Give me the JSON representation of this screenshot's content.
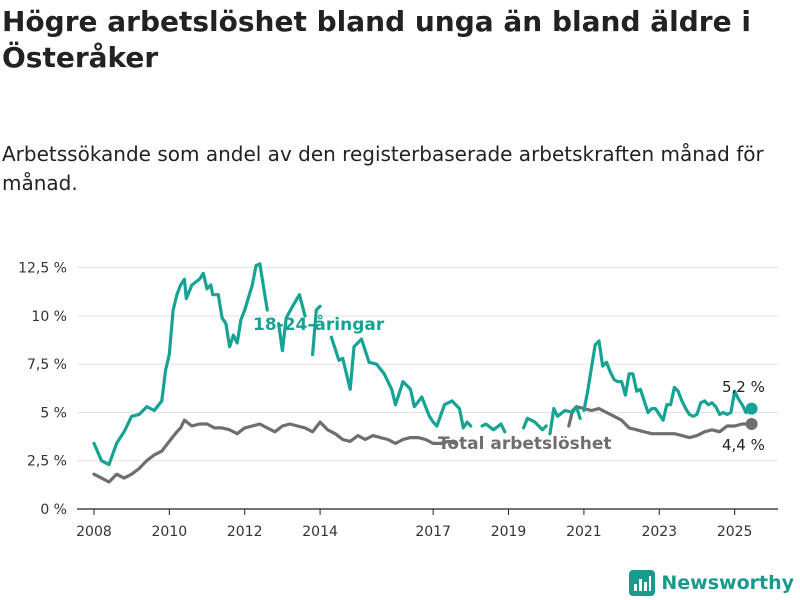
{
  "title": "Högre arbetslöshet bland unga än bland äldre i Österåker",
  "subtitle": "Arbetssökande som andel av den registerbaserade arbetskraften månad för månad.",
  "brand": "Newsworthy",
  "colors": {
    "youth": "#16a394",
    "total": "#6e6e6e",
    "grid": "#e2e2e2"
  },
  "chart_data": {
    "type": "line",
    "title": "Högre arbetslöshet bland unga än bland äldre i Österåker",
    "subtitle": "Arbetssökande som andel av den registerbaserade arbetskraften månad för månad.",
    "xlabel": "",
    "ylabel": "",
    "x_ticks": [
      "2008",
      "2010",
      "2012",
      "2014",
      "2017",
      "2019",
      "2021",
      "2023",
      "2025"
    ],
    "y_ticks": [
      "0 %",
      "2,5 %",
      "5 %",
      "7,5 %",
      "10 %",
      "12,5 %"
    ],
    "ylim": [
      0,
      13
    ],
    "grid": true,
    "x_unit": "year",
    "series": [
      {
        "name": "18-24-åringar",
        "color": "#16a394",
        "end_label": "5,2 %",
        "segments": [
          [
            [
              2008.0,
              3.4
            ],
            [
              2008.2,
              2.5
            ],
            [
              2008.4,
              2.3
            ],
            [
              2008.6,
              3.4
            ],
            [
              2008.8,
              4.0
            ],
            [
              2009.0,
              4.8
            ],
            [
              2009.2,
              4.9
            ],
            [
              2009.4,
              5.3
            ],
            [
              2009.6,
              5.1
            ],
            [
              2009.8,
              5.6
            ],
            [
              2009.9,
              7.2
            ],
            [
              2010.0,
              8.0
            ],
            [
              2010.1,
              10.3
            ],
            [
              2010.2,
              11.1
            ],
            [
              2010.3,
              11.6
            ],
            [
              2010.4,
              11.9
            ],
            [
              2010.45,
              10.9
            ],
            [
              2010.6,
              11.6
            ],
            [
              2010.8,
              11.9
            ],
            [
              2010.9,
              12.2
            ],
            [
              2011.0,
              11.4
            ],
            [
              2011.1,
              11.6
            ],
            [
              2011.15,
              11.1
            ],
            [
              2011.3,
              11.1
            ],
            [
              2011.4,
              9.9
            ],
            [
              2011.5,
              9.6
            ],
            [
              2011.6,
              8.4
            ],
            [
              2011.7,
              9.0
            ],
            [
              2011.8,
              8.6
            ],
            [
              2011.9,
              9.8
            ],
            [
              2012.0,
              10.3
            ],
            [
              2012.2,
              11.6
            ],
            [
              2012.3,
              12.6
            ],
            [
              2012.4,
              12.7
            ],
            [
              2012.6,
              10.3
            ]
          ],
          [
            [
              2012.9,
              9.6
            ],
            [
              2013.0,
              8.2
            ],
            [
              2013.1,
              9.9
            ],
            [
              2013.3,
              10.6
            ],
            [
              2013.45,
              11.1
            ],
            [
              2013.6,
              10.0
            ]
          ],
          [
            [
              2013.8,
              8.0
            ],
            [
              2013.9,
              10.3
            ],
            [
              2014.0,
              10.5
            ]
          ],
          [
            [
              2014.3,
              8.9
            ],
            [
              2014.5,
              7.7
            ],
            [
              2014.6,
              7.8
            ],
            [
              2014.8,
              6.2
            ],
            [
              2014.9,
              8.4
            ],
            [
              2015.1,
              8.8
            ],
            [
              2015.3,
              7.6
            ],
            [
              2015.5,
              7.5
            ],
            [
              2015.7,
              7.0
            ],
            [
              2015.9,
              6.2
            ],
            [
              2016.0,
              5.4
            ],
            [
              2016.2,
              6.6
            ],
            [
              2016.4,
              6.2
            ],
            [
              2016.5,
              5.3
            ],
            [
              2016.7,
              5.8
            ],
            [
              2016.9,
              4.8
            ],
            [
              2017.0,
              4.5
            ],
            [
              2017.1,
              4.3
            ],
            [
              2017.3,
              5.4
            ],
            [
              2017.5,
              5.6
            ],
            [
              2017.7,
              5.2
            ],
            [
              2017.8,
              4.2
            ],
            [
              2017.9,
              4.5
            ],
            [
              2018.0,
              4.3
            ]
          ],
          [
            [
              2018.3,
              4.3
            ],
            [
              2018.4,
              4.4
            ],
            [
              2018.6,
              4.1
            ],
            [
              2018.8,
              4.4
            ],
            [
              2018.9,
              4.0
            ]
          ],
          [
            [
              2019.4,
              4.2
            ],
            [
              2019.5,
              4.7
            ],
            [
              2019.7,
              4.5
            ],
            [
              2019.9,
              4.1
            ],
            [
              2020.0,
              4.3
            ]
          ],
          [
            [
              2020.1,
              3.9
            ],
            [
              2020.2,
              5.2
            ],
            [
              2020.3,
              4.8
            ],
            [
              2020.5,
              5.1
            ],
            [
              2020.7,
              5.0
            ],
            [
              2020.8,
              5.3
            ],
            [
              2020.9,
              4.7
            ]
          ],
          [
            [
              2021.0,
              5.1
            ],
            [
              2021.1,
              6.1
            ],
            [
              2021.2,
              7.3
            ],
            [
              2021.3,
              8.5
            ],
            [
              2021.4,
              8.7
            ],
            [
              2021.5,
              7.4
            ],
            [
              2021.6,
              7.6
            ],
            [
              2021.7,
              7.1
            ],
            [
              2021.8,
              6.7
            ],
            [
              2021.9,
              6.6
            ],
            [
              2022.0,
              6.6
            ],
            [
              2022.1,
              5.9
            ],
            [
              2022.2,
              7.0
            ],
            [
              2022.3,
              7.0
            ],
            [
              2022.4,
              6.1
            ],
            [
              2022.5,
              6.2
            ],
            [
              2022.6,
              5.6
            ],
            [
              2022.7,
              5.0
            ],
            [
              2022.8,
              5.2
            ],
            [
              2022.9,
              5.2
            ],
            [
              2023.0,
              4.9
            ],
            [
              2023.1,
              4.6
            ],
            [
              2023.2,
              5.4
            ],
            [
              2023.3,
              5.4
            ],
            [
              2023.4,
              6.3
            ],
            [
              2023.5,
              6.1
            ],
            [
              2023.6,
              5.6
            ],
            [
              2023.7,
              5.2
            ],
            [
              2023.8,
              4.9
            ],
            [
              2023.9,
              4.8
            ],
            [
              2024.0,
              4.9
            ],
            [
              2024.1,
              5.5
            ],
            [
              2024.2,
              5.6
            ],
            [
              2024.3,
              5.4
            ],
            [
              2024.4,
              5.5
            ],
            [
              2024.5,
              5.3
            ],
            [
              2024.6,
              4.9
            ],
            [
              2024.7,
              5.0
            ],
            [
              2024.8,
              4.9
            ],
            [
              2024.9,
              5.0
            ],
            [
              2025.0,
              6.1
            ],
            [
              2025.1,
              5.7
            ],
            [
              2025.2,
              5.4
            ],
            [
              2025.3,
              5.0
            ],
            [
              2025.45,
              5.2
            ]
          ]
        ]
      },
      {
        "name": "Total arbetslöshet",
        "color": "#6e6e6e",
        "end_label": "4,4 %",
        "segments": [
          [
            [
              2008.0,
              1.8
            ],
            [
              2008.2,
              1.6
            ],
            [
              2008.4,
              1.4
            ],
            [
              2008.6,
              1.8
            ],
            [
              2008.8,
              1.6
            ],
            [
              2009.0,
              1.8
            ],
            [
              2009.2,
              2.1
            ],
            [
              2009.4,
              2.5
            ],
            [
              2009.6,
              2.8
            ],
            [
              2009.8,
              3.0
            ],
            [
              2010.0,
              3.5
            ],
            [
              2010.2,
              4.0
            ],
            [
              2010.3,
              4.2
            ],
            [
              2010.4,
              4.6
            ],
            [
              2010.6,
              4.3
            ],
            [
              2010.8,
              4.4
            ],
            [
              2011.0,
              4.4
            ],
            [
              2011.2,
              4.2
            ],
            [
              2011.4,
              4.2
            ],
            [
              2011.6,
              4.1
            ],
            [
              2011.8,
              3.9
            ],
            [
              2012.0,
              4.2
            ],
            [
              2012.2,
              4.3
            ],
            [
              2012.4,
              4.4
            ],
            [
              2012.6,
              4.2
            ],
            [
              2012.8,
              4.0
            ],
            [
              2013.0,
              4.3
            ],
            [
              2013.2,
              4.4
            ],
            [
              2013.4,
              4.3
            ],
            [
              2013.6,
              4.2
            ],
            [
              2013.8,
              4.0
            ],
            [
              2014.0,
              4.5
            ],
            [
              2014.2,
              4.1
            ],
            [
              2014.4,
              3.9
            ],
            [
              2014.6,
              3.6
            ],
            [
              2014.8,
              3.5
            ],
            [
              2015.0,
              3.8
            ],
            [
              2015.2,
              3.6
            ],
            [
              2015.4,
              3.8
            ],
            [
              2015.6,
              3.7
            ],
            [
              2015.8,
              3.6
            ],
            [
              2016.0,
              3.4
            ],
            [
              2016.2,
              3.6
            ],
            [
              2016.4,
              3.7
            ],
            [
              2016.6,
              3.7
            ],
            [
              2016.8,
              3.6
            ],
            [
              2017.0,
              3.4
            ],
            [
              2017.2,
              3.4
            ],
            [
              2017.4,
              3.5
            ],
            [
              2017.6,
              3.4
            ]
          ],
          [
            [
              2020.6,
              4.3
            ],
            [
              2020.7,
              5.1
            ],
            [
              2020.8,
              5.3
            ],
            [
              2021.0,
              5.2
            ],
            [
              2021.2,
              5.1
            ],
            [
              2021.4,
              5.2
            ],
            [
              2021.6,
              5.0
            ],
            [
              2021.8,
              4.8
            ],
            [
              2022.0,
              4.6
            ],
            [
              2022.2,
              4.2
            ],
            [
              2022.4,
              4.1
            ],
            [
              2022.6,
              4.0
            ],
            [
              2022.8,
              3.9
            ],
            [
              2023.0,
              3.9
            ],
            [
              2023.2,
              3.9
            ],
            [
              2023.4,
              3.9
            ],
            [
              2023.6,
              3.8
            ],
            [
              2023.8,
              3.7
            ],
            [
              2024.0,
              3.8
            ],
            [
              2024.2,
              4.0
            ],
            [
              2024.4,
              4.1
            ],
            [
              2024.6,
              4.0
            ],
            [
              2024.8,
              4.3
            ],
            [
              2025.0,
              4.3
            ],
            [
              2025.2,
              4.4
            ],
            [
              2025.45,
              4.4
            ]
          ]
        ]
      }
    ]
  }
}
